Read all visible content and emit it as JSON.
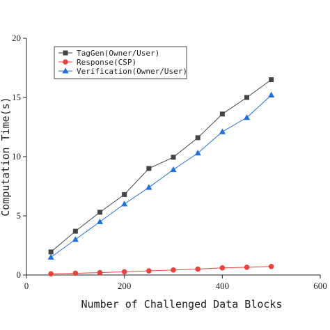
{
  "chart_data": {
    "type": "line",
    "title": "",
    "xlabel": "Number of Challenged Data Blocks",
    "ylabel": "Computation Time(s)",
    "xlim": [
      0,
      600
    ],
    "ylim": [
      0,
      20
    ],
    "xticks": [
      0,
      200,
      400,
      600
    ],
    "yticks": [
      0,
      5,
      10,
      15,
      20
    ],
    "grid": false,
    "legend_position": "top-left",
    "x": [
      50,
      100,
      150,
      200,
      250,
      300,
      350,
      400,
      450,
      500
    ],
    "series": [
      {
        "name": "TagGen(Owner/User)",
        "marker": "square",
        "color": "#444444",
        "values": [
          1.95,
          3.7,
          5.3,
          6.8,
          9.0,
          9.95,
          11.6,
          13.6,
          15.0,
          16.5
        ]
      },
      {
        "name": "Response(CSP)",
        "marker": "circle",
        "color": "#e8433f",
        "values": [
          0.1,
          0.15,
          0.2,
          0.27,
          0.35,
          0.42,
          0.5,
          0.6,
          0.65,
          0.72
        ]
      },
      {
        "name": "Verification(Owner/User)",
        "marker": "triangle",
        "color": "#1f6fe0",
        "values": [
          1.5,
          3.0,
          4.5,
          6.0,
          7.4,
          8.9,
          10.3,
          12.1,
          13.3,
          15.2
        ]
      }
    ]
  }
}
